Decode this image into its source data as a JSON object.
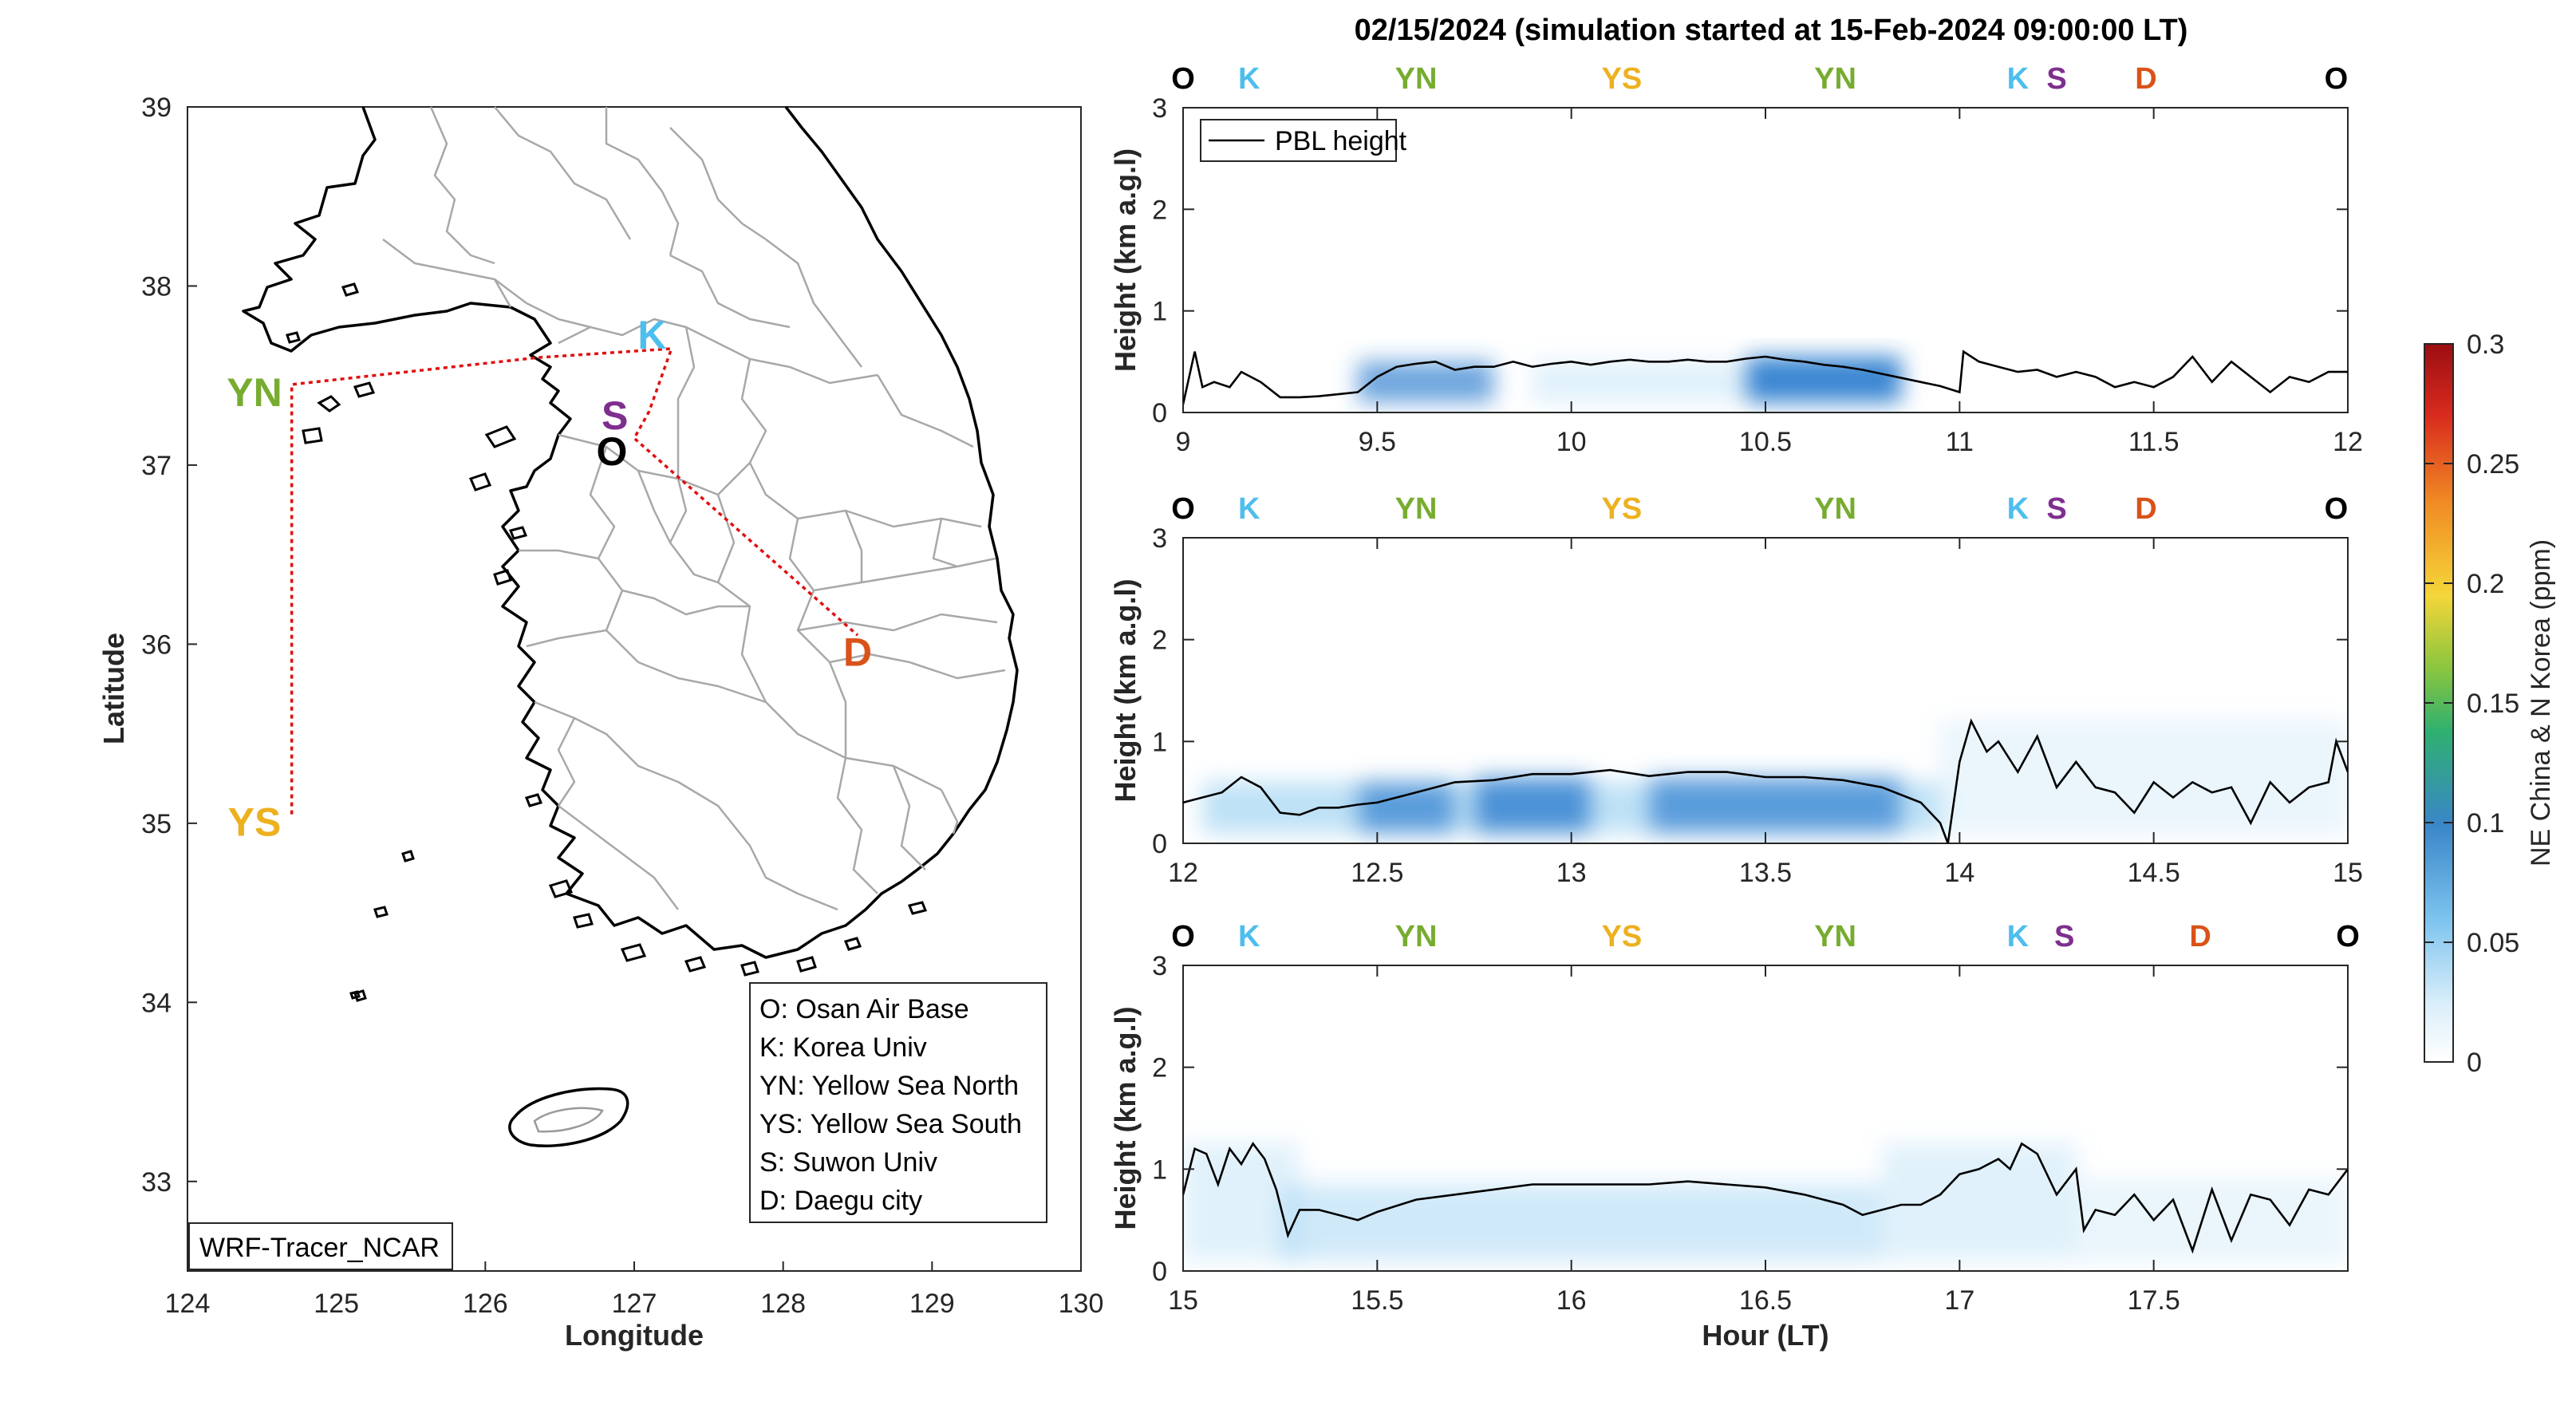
{
  "colors": {
    "O": "#000000",
    "K": "#4DBEEE",
    "YN": "#77AC30",
    "YS": "#EDB120",
    "S": "#7E2F8E",
    "D": "#D95319",
    "route": "#E01010",
    "tracer": "#2F7FD0"
  },
  "map": {
    "xlabel": "Longitude",
    "ylabel": "Latitude",
    "xlim": [
      124,
      130
    ],
    "ylim": [
      32.5,
      39
    ],
    "xticks": [
      "124",
      "125",
      "126",
      "127",
      "128",
      "129",
      "130"
    ],
    "yticks": [
      "33",
      "34",
      "35",
      "36",
      "37",
      "38",
      "39"
    ],
    "route": [
      [
        124.7,
        35.05
      ],
      [
        124.7,
        37.45
      ],
      [
        126.35,
        37.6
      ],
      [
        127.25,
        37.65
      ],
      [
        127.1,
        37.3
      ],
      [
        127.0,
        37.15
      ],
      [
        128.5,
        36.05
      ]
    ],
    "sites": [
      {
        "key": "K",
        "label": "K",
        "lon": 127.12,
        "lat": 37.73
      },
      {
        "key": "S",
        "label": "S",
        "lon": 126.87,
        "lat": 37.28
      },
      {
        "key": "O",
        "label": "O",
        "lon": 126.85,
        "lat": 37.08
      },
      {
        "key": "D",
        "label": "D",
        "lon": 128.5,
        "lat": 35.96
      },
      {
        "key": "YN",
        "label": "YN",
        "lon": 124.45,
        "lat": 37.41
      },
      {
        "key": "YS",
        "label": "YS",
        "lon": 124.45,
        "lat": 35.01
      }
    ],
    "legend": [
      "O: Osan Air Base",
      "K: Korea Univ",
      "YN: Yellow Sea North",
      "YS: Yellow Sea South",
      "S: Suwon Univ",
      "D: Daegu city"
    ],
    "model_label": "WRF-Tracer_NCAR"
  },
  "chart_data": {
    "type": "line",
    "title": "02/15/2024 (simulation started at 15-Feb-2024 09:00:00 LT)",
    "xlabel": "Hour (LT)",
    "ylabel": "Height (km a.g.l)",
    "legend": "PBL height",
    "legend_position": "top-left",
    "colorbar": {
      "label": "NE China & N Korea (ppm)",
      "range": [
        0,
        0.3
      ],
      "ticks": [
        "0",
        "0.05",
        "0.1",
        "0.15",
        "0.2",
        "0.25",
        "0.3"
      ]
    },
    "panels": [
      {
        "xlim": [
          9,
          12
        ],
        "ylim": [
          0,
          3
        ],
        "xticks": [
          "9",
          "9.5",
          "10",
          "10.5",
          "11",
          "11.5",
          "12"
        ],
        "yticks": [
          "0",
          "1",
          "2",
          "3"
        ],
        "site_labels": [
          {
            "t": 9.0,
            "key": "O"
          },
          {
            "t": 9.17,
            "key": "K"
          },
          {
            "t": 9.6,
            "key": "YN"
          },
          {
            "t": 10.13,
            "key": "YS"
          },
          {
            "t": 10.68,
            "key": "YN"
          },
          {
            "t": 11.15,
            "key": "K"
          },
          {
            "t": 11.25,
            "key": "S"
          },
          {
            "t": 11.48,
            "key": "D"
          },
          {
            "t": 11.97,
            "key": "O"
          }
        ],
        "pbl": {
          "x": [
            9.0,
            9.03,
            9.05,
            9.08,
            9.12,
            9.15,
            9.2,
            9.25,
            9.3,
            9.35,
            9.4,
            9.45,
            9.5,
            9.55,
            9.6,
            9.65,
            9.7,
            9.75,
            9.8,
            9.85,
            9.9,
            9.95,
            10.0,
            10.05,
            10.1,
            10.15,
            10.2,
            10.25,
            10.3,
            10.35,
            10.4,
            10.45,
            10.5,
            10.55,
            10.6,
            10.65,
            10.7,
            10.75,
            10.8,
            10.85,
            10.9,
            10.95,
            11.0,
            11.01,
            11.05,
            11.1,
            11.15,
            11.2,
            11.25,
            11.3,
            11.35,
            11.4,
            11.45,
            11.5,
            11.55,
            11.6,
            11.65,
            11.7,
            11.75,
            11.8,
            11.85,
            11.9,
            11.95,
            12.0
          ],
          "y": [
            0.08,
            0.6,
            0.25,
            0.3,
            0.25,
            0.4,
            0.3,
            0.15,
            0.15,
            0.16,
            0.18,
            0.2,
            0.35,
            0.45,
            0.48,
            0.5,
            0.42,
            0.45,
            0.45,
            0.5,
            0.45,
            0.48,
            0.5,
            0.47,
            0.5,
            0.52,
            0.5,
            0.5,
            0.52,
            0.5,
            0.5,
            0.53,
            0.55,
            0.52,
            0.5,
            0.47,
            0.45,
            0.42,
            0.38,
            0.34,
            0.3,
            0.26,
            0.2,
            0.6,
            0.5,
            0.45,
            0.4,
            0.42,
            0.35,
            0.4,
            0.35,
            0.25,
            0.3,
            0.25,
            0.35,
            0.55,
            0.3,
            0.5,
            0.35,
            0.2,
            0.35,
            0.3,
            0.4,
            0.4
          ]
        },
        "tracer": [
          {
            "t0": 9.45,
            "t1": 9.8,
            "z0": 0.1,
            "z1": 0.5,
            "c": 0.035
          },
          {
            "t0": 10.45,
            "t1": 10.85,
            "z0": 0.1,
            "z1": 0.55,
            "c": 0.05
          },
          {
            "t0": 9.9,
            "t1": 10.45,
            "z0": 0.1,
            "z1": 0.5,
            "c": 0.012
          }
        ]
      },
      {
        "xlim": [
          12,
          15
        ],
        "ylim": [
          0,
          3
        ],
        "xticks": [
          "12",
          "12.5",
          "13",
          "13.5",
          "14",
          "14.5",
          "15"
        ],
        "yticks": [
          "0",
          "1",
          "2",
          "3"
        ],
        "site_labels": [
          {
            "t": 12.0,
            "key": "O"
          },
          {
            "t": 12.17,
            "key": "K"
          },
          {
            "t": 12.6,
            "key": "YN"
          },
          {
            "t": 13.13,
            "key": "YS"
          },
          {
            "t": 13.68,
            "key": "YN"
          },
          {
            "t": 14.15,
            "key": "K"
          },
          {
            "t": 14.25,
            "key": "S"
          },
          {
            "t": 14.48,
            "key": "D"
          },
          {
            "t": 14.97,
            "key": "O"
          }
        ],
        "pbl": {
          "x": [
            12.0,
            12.05,
            12.1,
            12.15,
            12.2,
            12.25,
            12.3,
            12.35,
            12.4,
            12.45,
            12.5,
            12.6,
            12.7,
            12.8,
            12.9,
            13.0,
            13.1,
            13.2,
            13.3,
            13.4,
            13.5,
            13.6,
            13.7,
            13.8,
            13.9,
            13.95,
            13.97,
            14.0,
            14.03,
            14.07,
            14.1,
            14.15,
            14.2,
            14.25,
            14.3,
            14.35,
            14.4,
            14.45,
            14.5,
            14.55,
            14.6,
            14.65,
            14.7,
            14.75,
            14.8,
            14.85,
            14.9,
            14.95,
            14.97,
            15.0
          ],
          "y": [
            0.4,
            0.45,
            0.5,
            0.65,
            0.55,
            0.3,
            0.28,
            0.35,
            0.35,
            0.38,
            0.4,
            0.5,
            0.6,
            0.62,
            0.68,
            0.68,
            0.72,
            0.66,
            0.7,
            0.7,
            0.65,
            0.65,
            0.62,
            0.55,
            0.4,
            0.2,
            0.0,
            0.8,
            1.2,
            0.9,
            1.0,
            0.7,
            1.05,
            0.55,
            0.8,
            0.55,
            0.5,
            0.3,
            0.6,
            0.45,
            0.6,
            0.5,
            0.55,
            0.2,
            0.6,
            0.4,
            0.55,
            0.6,
            1.0,
            0.7
          ]
        },
        "tracer": [
          {
            "t0": 12.05,
            "t1": 13.95,
            "z0": 0.1,
            "z1": 0.6,
            "c": 0.025
          },
          {
            "t0": 12.45,
            "t1": 12.7,
            "z0": 0.1,
            "z1": 0.6,
            "c": 0.035
          },
          {
            "t0": 12.75,
            "t1": 13.05,
            "z0": 0.1,
            "z1": 0.65,
            "c": 0.04
          },
          {
            "t0": 13.2,
            "t1": 13.85,
            "z0": 0.1,
            "z1": 0.65,
            "c": 0.035
          },
          {
            "t0": 13.95,
            "t1": 15.0,
            "z0": 0.1,
            "z1": 1.2,
            "c": 0.008
          }
        ]
      },
      {
        "xlim": [
          15,
          18
        ],
        "ylim": [
          0,
          3
        ],
        "xticks": [
          "15",
          "15.5",
          "16",
          "16.5",
          "17",
          "17.5"
        ],
        "yticks": [
          "0",
          "1",
          "2",
          "3"
        ],
        "site_labels": [
          {
            "t": 15.0,
            "key": "O"
          },
          {
            "t": 15.17,
            "key": "K"
          },
          {
            "t": 15.6,
            "key": "YN"
          },
          {
            "t": 16.13,
            "key": "YS"
          },
          {
            "t": 16.68,
            "key": "YN"
          },
          {
            "t": 17.15,
            "key": "K"
          },
          {
            "t": 17.27,
            "key": "S"
          },
          {
            "t": 17.62,
            "key": "D"
          },
          {
            "t": 18.0,
            "key": "O"
          }
        ],
        "pbl": {
          "x": [
            15.0,
            15.03,
            15.06,
            15.09,
            15.12,
            15.15,
            15.18,
            15.21,
            15.24,
            15.27,
            15.3,
            15.35,
            15.4,
            15.45,
            15.5,
            15.6,
            15.7,
            15.8,
            15.9,
            16.0,
            16.1,
            16.2,
            16.3,
            16.4,
            16.5,
            16.6,
            16.7,
            16.75,
            16.8,
            16.85,
            16.9,
            16.95,
            17.0,
            17.05,
            17.1,
            17.13,
            17.16,
            17.2,
            17.25,
            17.3,
            17.32,
            17.35,
            17.4,
            17.45,
            17.5,
            17.55,
            17.6,
            17.65,
            17.7,
            17.75,
            17.8,
            17.85,
            17.9,
            17.95,
            18.0
          ],
          "y": [
            0.75,
            1.2,
            1.15,
            0.85,
            1.2,
            1.05,
            1.25,
            1.1,
            0.8,
            0.35,
            0.6,
            0.6,
            0.55,
            0.5,
            0.58,
            0.7,
            0.75,
            0.8,
            0.85,
            0.85,
            0.85,
            0.85,
            0.88,
            0.85,
            0.82,
            0.75,
            0.65,
            0.55,
            0.6,
            0.65,
            0.65,
            0.75,
            0.95,
            1.0,
            1.1,
            1.0,
            1.25,
            1.15,
            0.75,
            1.0,
            0.4,
            0.6,
            0.55,
            0.75,
            0.5,
            0.7,
            0.2,
            0.8,
            0.3,
            0.75,
            0.7,
            0.45,
            0.8,
            0.75,
            1.0
          ]
        },
        "tracer": [
          {
            "t0": 15.0,
            "t1": 15.3,
            "z0": 0.1,
            "z1": 1.25,
            "c": 0.012
          },
          {
            "t0": 15.25,
            "t1": 16.8,
            "z0": 0.1,
            "z1": 0.85,
            "c": 0.018
          },
          {
            "t0": 16.8,
            "t1": 17.3,
            "z0": 0.1,
            "z1": 1.25,
            "c": 0.012
          },
          {
            "t0": 17.3,
            "t1": 18.0,
            "z0": 0.1,
            "z1": 0.9,
            "c": 0.008
          }
        ]
      }
    ]
  }
}
